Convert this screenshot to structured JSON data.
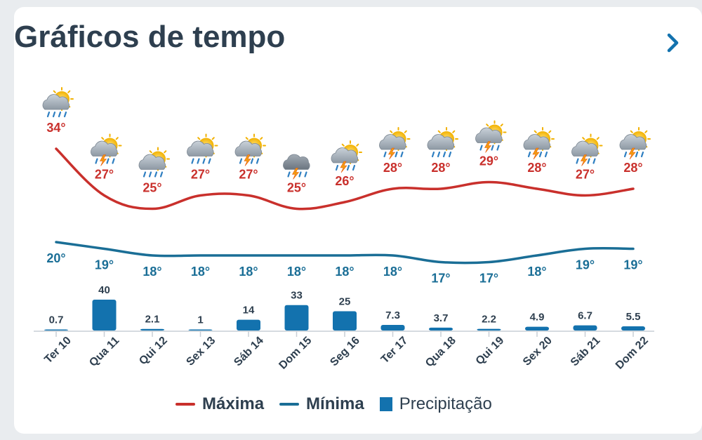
{
  "header": {
    "title": "Gráficos de tempo",
    "next_icon": "chevron-right-icon"
  },
  "legend": {
    "max_label": "Máxima",
    "min_label": "Mínima",
    "precip_label": "Precipitação"
  },
  "colors": {
    "max": "#c9302c",
    "min": "#1a6e96",
    "precip": "#1372ae",
    "text": "#2e3f4f"
  },
  "chart_data": {
    "type": "line",
    "categories": [
      "Ter 10",
      "Qua 11",
      "Qui 12",
      "Sex 13",
      "Sáb 14",
      "Dom 15",
      "Seg 16",
      "Ter 17",
      "Qua 18",
      "Qui 19",
      "Sex 20",
      "Sáb 21",
      "Dom 22"
    ],
    "icons": [
      "sun-cloud-rain-icon",
      "sun-cloud-storm-icon",
      "sun-cloud-rain-icon",
      "sun-cloud-rain-icon",
      "sun-cloud-storm-icon",
      "cloud-storm-icon",
      "sun-cloud-storm-icon",
      "sun-cloud-storm-icon",
      "sun-cloud-rain-icon",
      "sun-cloud-storm-icon",
      "sun-cloud-storm-icon",
      "sun-cloud-storm-icon",
      "sun-cloud-storm-icon"
    ],
    "series": [
      {
        "name": "Máxima",
        "values": [
          34,
          27,
          25,
          27,
          27,
          25,
          26,
          28,
          28,
          29,
          28,
          27,
          28
        ]
      },
      {
        "name": "Mínima",
        "values": [
          20,
          19,
          18,
          18,
          18,
          18,
          18,
          18,
          17,
          17,
          18,
          19,
          19
        ]
      },
      {
        "name": "Precipitação",
        "values": [
          0.7,
          40,
          2.1,
          1,
          14,
          33,
          25,
          7.3,
          3.7,
          2.2,
          4.9,
          6.7,
          5.5
        ]
      }
    ],
    "temp_unit": "°",
    "temp_labels": {
      "max": [
        "34°",
        "27°",
        "25°",
        "27°",
        "27°",
        "25°",
        "26°",
        "28°",
        "28°",
        "29°",
        "28°",
        "27°",
        "28°"
      ],
      "min": [
        "20°",
        "19°",
        "18°",
        "18°",
        "18°",
        "18°",
        "18°",
        "18°",
        "17°",
        "17°",
        "18°",
        "19°",
        "19°"
      ]
    },
    "precip_labels": [
      "0.7",
      "40",
      "2.1",
      "1",
      "14",
      "33",
      "25",
      "7.3",
      "3.7",
      "2.2",
      "4.9",
      "6.7",
      "5.5"
    ]
  }
}
